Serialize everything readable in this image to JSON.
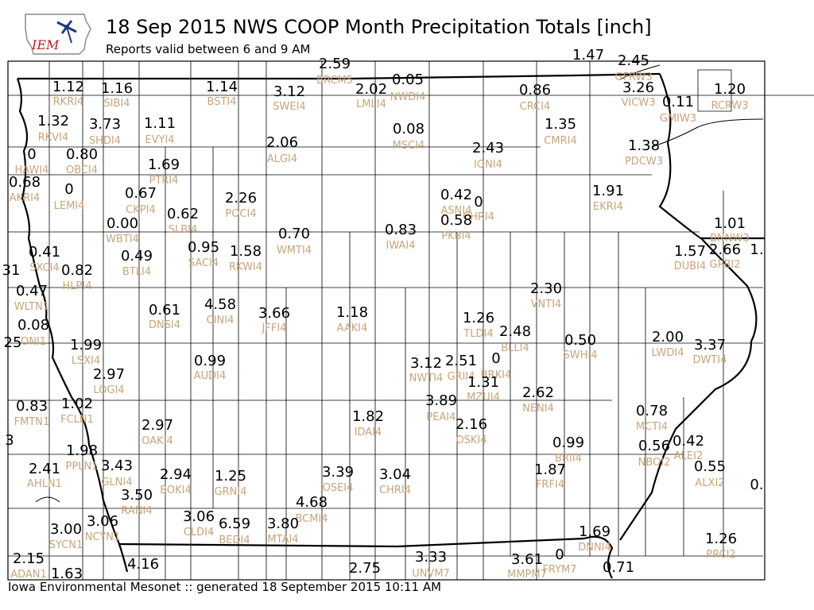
{
  "header": {
    "title": "18 Sep 2015 NWS COOP Month Precipitation Totals [inch]",
    "subtitle": "Reports valid between 6 and 9 AM",
    "logo_text": "IEM"
  },
  "footer": {
    "text": "Iowa Environmental Mesonet :: generated 18 September 2015 10:11 AM"
  },
  "colors": {
    "value": "#000000",
    "station_id": "#c8a47c",
    "logo_red": "#b22222",
    "logo_blue": "#1e3c78"
  },
  "stations": [
    {
      "id": "RKRI4",
      "value": "1.12"
    },
    {
      "id": "SIBI4",
      "value": "1.16"
    },
    {
      "id": "BSTI4",
      "value": "1.14"
    },
    {
      "id": "SWEI4",
      "value": "3.12"
    },
    {
      "id": "BRCM5",
      "value": "2.59"
    },
    {
      "id": "LMLI4",
      "value": "2.02"
    },
    {
      "id": "NWDI4",
      "value": "0.05"
    },
    {
      "id": "CRCI4",
      "value": "0.86"
    },
    {
      "id": "",
      "value": "1.47"
    },
    {
      "id": "GFRW3",
      "value": "2.45"
    },
    {
      "id": "VICW3",
      "value": "3.26"
    },
    {
      "id": "GMIW3",
      "value": "0.11"
    },
    {
      "id": "RCRW3",
      "value": "1.20"
    },
    {
      "id": "RKVI4",
      "value": "1.32"
    },
    {
      "id": "SHDI4",
      "value": "3.73"
    },
    {
      "id": "EVYI4",
      "value": "1.11"
    },
    {
      "id": "ALGI4",
      "value": "2.06"
    },
    {
      "id": "MSCI4",
      "value": "0.08"
    },
    {
      "id": "CMRI4",
      "value": "1.35"
    },
    {
      "id": "IONI4",
      "value": "2.43"
    },
    {
      "id": "PDCW3",
      "value": "1.38"
    },
    {
      "id": "HAWI4",
      "value": "0"
    },
    {
      "id": "OBCI4",
      "value": "0.80"
    },
    {
      "id": "PTRI4",
      "value": "1.69"
    },
    {
      "id": "AKRI4",
      "value": "0.68"
    },
    {
      "id": "LEMI4",
      "value": "0"
    },
    {
      "id": "CKPI4",
      "value": "0.67"
    },
    {
      "id": "POCI4",
      "value": "2.26"
    },
    {
      "id": "ASNI4",
      "value": "0.42"
    },
    {
      "id": "CHRI4",
      "value": "0"
    },
    {
      "id": "EKRI4",
      "value": "1.91"
    },
    {
      "id": "SLBI4",
      "value": "0.62"
    },
    {
      "id": "PKBI4",
      "value": "0.58"
    },
    {
      "id": "WBTI4",
      "value": "0.00"
    },
    {
      "id": "WMTI4",
      "value": "0.70"
    },
    {
      "id": "IWAI4",
      "value": "0.83"
    },
    {
      "id": "BNNW3",
      "value": "1.01"
    },
    {
      "id": "SXCI4",
      "value": "0.41"
    },
    {
      "id": "SACI4",
      "value": "0.95"
    },
    {
      "id": "RKWI4",
      "value": "1.58"
    },
    {
      "id": "BTLI4",
      "value": "0.49"
    },
    {
      "id": "DUBI4",
      "value": "1.57"
    },
    {
      "id": "GPBI2",
      "value": "2.66"
    },
    {
      "id": "",
      "value": "1."
    },
    {
      "id": "",
      "value": "31"
    },
    {
      "id": "HLPI4",
      "value": "0.82"
    },
    {
      "id": "WLTN1",
      "value": "0.47"
    },
    {
      "id": "VNTI4",
      "value": "2.30"
    },
    {
      "id": "DNSI4",
      "value": "0.61"
    },
    {
      "id": "CINI4",
      "value": "4.58"
    },
    {
      "id": "JFFI4",
      "value": "3.66"
    },
    {
      "id": "AAKI4",
      "value": "1.18"
    },
    {
      "id": "TLDI4",
      "value": "1.26"
    },
    {
      "id": "ONI1",
      "value": "0.08"
    },
    {
      "id": "BLLI4",
      "value": "2.48"
    },
    {
      "id": "SWHI4",
      "value": "0.50"
    },
    {
      "id": "LWDI4",
      "value": "2.00"
    },
    {
      "id": "DWTI4",
      "value": "3.37"
    },
    {
      "id": "",
      "value": "25"
    },
    {
      "id": "LSXI4",
      "value": "1.99"
    },
    {
      "id": "AUDI4",
      "value": "0.99"
    },
    {
      "id": "NWTI4",
      "value": "3.12"
    },
    {
      "id": "GRII4",
      "value": "2.51"
    },
    {
      "id": "BRKI4",
      "value": "0"
    },
    {
      "id": "LOGI4",
      "value": "2.97"
    },
    {
      "id": "MZUI4",
      "value": "1.31"
    },
    {
      "id": "NENI4",
      "value": "2.62"
    },
    {
      "id": "PEAI4",
      "value": "3.89"
    },
    {
      "id": "FMTN1",
      "value": "0.83"
    },
    {
      "id": "FCLN1",
      "value": "1.02"
    },
    {
      "id": "MCTI4",
      "value": "0.78"
    },
    {
      "id": "OAKI4",
      "value": "2.97"
    },
    {
      "id": "IDAI4",
      "value": "1.82"
    },
    {
      "id": "OSKI4",
      "value": "2.16"
    },
    {
      "id": "ALEI2",
      "value": "0.42"
    },
    {
      "id": "",
      "value": "3"
    },
    {
      "id": "BRII4",
      "value": "0.99"
    },
    {
      "id": "NBOI2",
      "value": "0.56"
    },
    {
      "id": "PPLN1",
      "value": "1.98"
    },
    {
      "id": "AHLN1",
      "value": "2.41"
    },
    {
      "id": "GLNI4",
      "value": "3.43"
    },
    {
      "id": "BOKI4",
      "value": "2.94"
    },
    {
      "id": "GRNI4",
      "value": "1.25"
    },
    {
      "id": "OSEI4",
      "value": "3.39"
    },
    {
      "id": "CHRI4",
      "value": "3.04"
    },
    {
      "id": "FRFI4",
      "value": "1.87"
    },
    {
      "id": "ALXI2",
      "value": "0.55"
    },
    {
      "id": "",
      "value": "0."
    },
    {
      "id": "RANI4",
      "value": "3.50"
    },
    {
      "id": "BCMI4",
      "value": "4.68"
    },
    {
      "id": "SYCN1",
      "value": "3.00"
    },
    {
      "id": "NCYN1",
      "value": "3.06"
    },
    {
      "id": "CLDI4",
      "value": "3.06"
    },
    {
      "id": "BEDI4",
      "value": "6.59"
    },
    {
      "id": "MTAI4",
      "value": "3.80"
    },
    {
      "id": "DNNI4",
      "value": "1.69"
    },
    {
      "id": "PRCI2",
      "value": "1.26"
    },
    {
      "id": "ADAN1",
      "value": "2.15"
    },
    {
      "id": "",
      "value": "1.63"
    },
    {
      "id": "",
      "value": "4.16"
    },
    {
      "id": "",
      "value": "2.75"
    },
    {
      "id": "UNVM7",
      "value": "3.33"
    },
    {
      "id": "MMPM7",
      "value": "3.61"
    },
    {
      "id": "FRYM7",
      "value": "0"
    },
    {
      "id": "",
      "value": "0.71"
    }
  ]
}
